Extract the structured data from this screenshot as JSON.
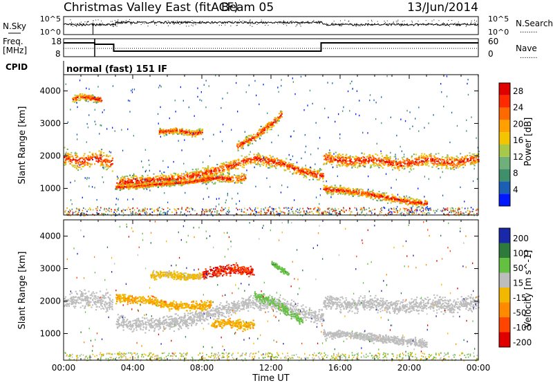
{
  "header": {
    "title": "Christmas Valley East (fitACF)",
    "beam": "Beam 05",
    "date": "13/Jun/2014"
  },
  "labels": {
    "nsky": "N.Sky",
    "nsearch": "N.Search",
    "freq": "Freq.",
    "freq_unit": "[MHz]",
    "nave": "Nave",
    "cpid": "CPID",
    "cpid_value": "normal (fast) 151 IF",
    "dots": "........"
  },
  "noise_panel": {
    "left_ticks": [
      "10^5",
      "10^0"
    ],
    "right_ticks": [
      "10^5",
      "10^0"
    ]
  },
  "freq_panel": {
    "left_ticks": [
      "18",
      "8"
    ],
    "right_ticks": [
      "60",
      "0"
    ]
  },
  "colors": {
    "power": [
      "#0018ff",
      "#1a5fb4",
      "#3f8f6a",
      "#6fb07a",
      "#a8c84a",
      "#f4c400",
      "#ffa000",
      "#ff6a00",
      "#ff2a00",
      "#e00000"
    ],
    "velocity": [
      "#1828a8",
      "#2e7a3a",
      "#64c040",
      "#bdbdbd",
      "#f2b800",
      "#ff8a00",
      "#ff4500",
      "#e00000"
    ]
  },
  "chart_data": [
    {
      "type": "heatmap",
      "name": "power",
      "xlabel": "",
      "ylabel": "Slant Range [km]",
      "yticks": [
        "1000",
        "2000",
        "3000",
        "4000"
      ],
      "colorbar_label": "Power [dB]",
      "colorbar_ticks": [
        "4",
        "8",
        "12",
        "16",
        "20",
        "24",
        "28"
      ],
      "x_range_hours": [
        0,
        24
      ],
      "y_range_km": [
        180,
        4500
      ],
      "bands": [
        {
          "t": [
            0.0,
            1.0,
            2.0,
            2.8
          ],
          "r": [
            1950,
            1850,
            1950,
            1800
          ],
          "w": 380
        },
        {
          "t": [
            3.0,
            5.0,
            7.0,
            9.0,
            11.0,
            12.5,
            13.5,
            15.0
          ],
          "r": [
            1200,
            1260,
            1350,
            1600,
            1950,
            1800,
            1600,
            1400
          ],
          "w": 260
        },
        {
          "t": [
            3.0,
            4.0,
            5.5,
            7.0,
            8.5
          ],
          "r": [
            1050,
            1080,
            1150,
            1200,
            1300
          ],
          "w": 120
        },
        {
          "t": [
            15.0,
            16.5,
            18.0,
            19.5,
            21.0,
            22.5,
            24.0
          ],
          "r": [
            1950,
            1850,
            1900,
            1750,
            1900,
            1800,
            1950
          ],
          "w": 300
        },
        {
          "t": [
            15.0,
            17.0,
            18.5,
            20.0,
            21.0
          ],
          "r": [
            1000,
            900,
            750,
            600,
            550
          ],
          "w": 180
        },
        {
          "t": [
            10.0,
            11.0,
            12.0,
            12.6
          ],
          "r": [
            2300,
            2600,
            3000,
            3300
          ],
          "w": 200
        },
        {
          "t": [
            5.5,
            6.5,
            7.5,
            8.0
          ],
          "r": [
            2750,
            2800,
            2700,
            2750
          ],
          "w": 150
        },
        {
          "t": [
            0.5,
            1.0,
            1.5,
            2.2
          ],
          "r": [
            3750,
            3850,
            3800,
            3750
          ],
          "w": 160
        },
        {
          "t": [
            8.0,
            9.0,
            10.0,
            10.5
          ],
          "r": [
            1300,
            1350,
            1300,
            1350
          ],
          "w": 200
        }
      ]
    },
    {
      "type": "heatmap",
      "name": "velocity",
      "xlabel": "Time UT",
      "ylabel": "Slant Range [km]",
      "yticks": [
        "1000",
        "2000",
        "3000",
        "4000"
      ],
      "colorbar_label": "Velocity [m s^-1]",
      "colorbar_ticks": [
        "200",
        "100",
        "50",
        "15",
        "-15",
        "-50",
        "-100",
        "-200"
      ],
      "xticks": [
        "00:00",
        "04:00",
        "08:00",
        "12:00",
        "16:00",
        "20:00",
        "00:00"
      ],
      "x_range_hours": [
        0,
        24
      ],
      "y_range_km": [
        180,
        4500
      ],
      "bands": [
        {
          "t": [
            0.0,
            1.0,
            2.0,
            2.8
          ],
          "r": [
            2000,
            2100,
            2050,
            1950
          ],
          "w": 420,
          "v": 0
        },
        {
          "t": [
            3.0,
            5.0,
            7.0,
            9.0,
            11.0,
            12.5,
            13.5,
            15.0
          ],
          "r": [
            1350,
            1300,
            1400,
            1700,
            2000,
            1900,
            1700,
            1500
          ],
          "w": 320,
          "v": 0
        },
        {
          "t": [
            15.0,
            16.5,
            18.0,
            19.5,
            21.0,
            22.5,
            24.0
          ],
          "r": [
            2000,
            1900,
            1950,
            1800,
            1950,
            1850,
            2000
          ],
          "w": 320,
          "v": 0
        },
        {
          "t": [
            15.0,
            17.0,
            18.5,
            20.0,
            21.0
          ],
          "r": [
            1000,
            950,
            850,
            750,
            700
          ],
          "w": 180,
          "v": 0
        },
        {
          "t": [
            3.0,
            4.5,
            6.0,
            7.5,
            8.5
          ],
          "r": [
            2100,
            2050,
            1900,
            1850,
            1900
          ],
          "w": 200,
          "v": -60
        },
        {
          "t": [
            8.5,
            9.5,
            10.5,
            11.0
          ],
          "r": [
            1300,
            1350,
            1250,
            1300
          ],
          "w": 200,
          "v": -60
        },
        {
          "t": [
            11.0,
            12.0,
            13.0,
            13.8
          ],
          "r": [
            2200,
            2000,
            1700,
            1400
          ],
          "w": 220,
          "v": 40
        },
        {
          "t": [
            5.0,
            6.0,
            7.0,
            8.0
          ],
          "r": [
            2800,
            2850,
            2750,
            2800
          ],
          "w": 160,
          "v": -40
        },
        {
          "t": [
            8.0,
            9.0,
            10.0,
            11.0
          ],
          "r": [
            2850,
            2950,
            3000,
            2900
          ],
          "w": 220,
          "v": -200
        },
        {
          "t": [
            12.0,
            12.5,
            13.0
          ],
          "r": [
            3200,
            3000,
            2850
          ],
          "w": 120,
          "v": 50
        }
      ]
    }
  ]
}
